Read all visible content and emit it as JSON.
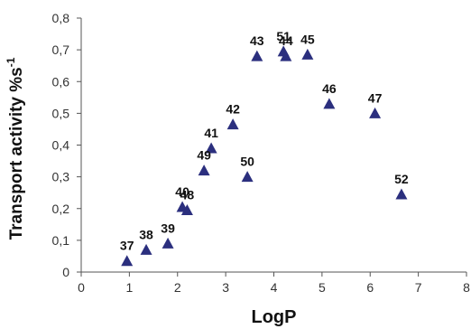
{
  "chart_data": {
    "type": "scatter",
    "title": "",
    "xlabel": "LogP",
    "ylabel_main": "Transport activity %s",
    "ylabel_superscript": "-1",
    "xlim": [
      0,
      8
    ],
    "ylim": [
      0,
      0.8
    ],
    "x_ticks": [
      {
        "value": 0,
        "label": "0"
      },
      {
        "value": 1,
        "label": "1"
      },
      {
        "value": 2,
        "label": "2"
      },
      {
        "value": 3,
        "label": "3"
      },
      {
        "value": 4,
        "label": "4"
      },
      {
        "value": 5,
        "label": "5"
      },
      {
        "value": 6,
        "label": "6"
      },
      {
        "value": 7,
        "label": "7"
      },
      {
        "value": 8,
        "label": "8"
      }
    ],
    "y_ticks": [
      {
        "value": 0,
        "label": "0"
      },
      {
        "value": 0.1,
        "label": "0,1"
      },
      {
        "value": 0.2,
        "label": "0,2"
      },
      {
        "value": 0.3,
        "label": "0,3"
      },
      {
        "value": 0.4,
        "label": "0,4"
      },
      {
        "value": 0.5,
        "label": "0,5"
      },
      {
        "value": 0.6,
        "label": "0,6"
      },
      {
        "value": 0.7,
        "label": "0,7"
      },
      {
        "value": 0.8,
        "label": "0,8"
      }
    ],
    "grid": false,
    "legend": "none",
    "marker": "triangle",
    "marker_color": "#2b2f7e",
    "points": [
      {
        "label": "37",
        "x": 0.95,
        "y": 0.035
      },
      {
        "label": "38",
        "x": 1.35,
        "y": 0.07
      },
      {
        "label": "39",
        "x": 1.8,
        "y": 0.09
      },
      {
        "label": "40",
        "x": 2.1,
        "y": 0.205
      },
      {
        "label": "48",
        "x": 2.2,
        "y": 0.195
      },
      {
        "label": "49",
        "x": 2.55,
        "y": 0.32
      },
      {
        "label": "41",
        "x": 2.7,
        "y": 0.39
      },
      {
        "label": "42",
        "x": 3.15,
        "y": 0.465
      },
      {
        "label": "50",
        "x": 3.45,
        "y": 0.3
      },
      {
        "label": "43",
        "x": 3.65,
        "y": 0.68
      },
      {
        "label": "51",
        "x": 4.2,
        "y": 0.695
      },
      {
        "label": "44",
        "x": 4.25,
        "y": 0.68
      },
      {
        "label": "45",
        "x": 4.7,
        "y": 0.685
      },
      {
        "label": "46",
        "x": 5.15,
        "y": 0.53
      },
      {
        "label": "47",
        "x": 6.1,
        "y": 0.5
      },
      {
        "label": "52",
        "x": 6.65,
        "y": 0.245
      }
    ]
  }
}
